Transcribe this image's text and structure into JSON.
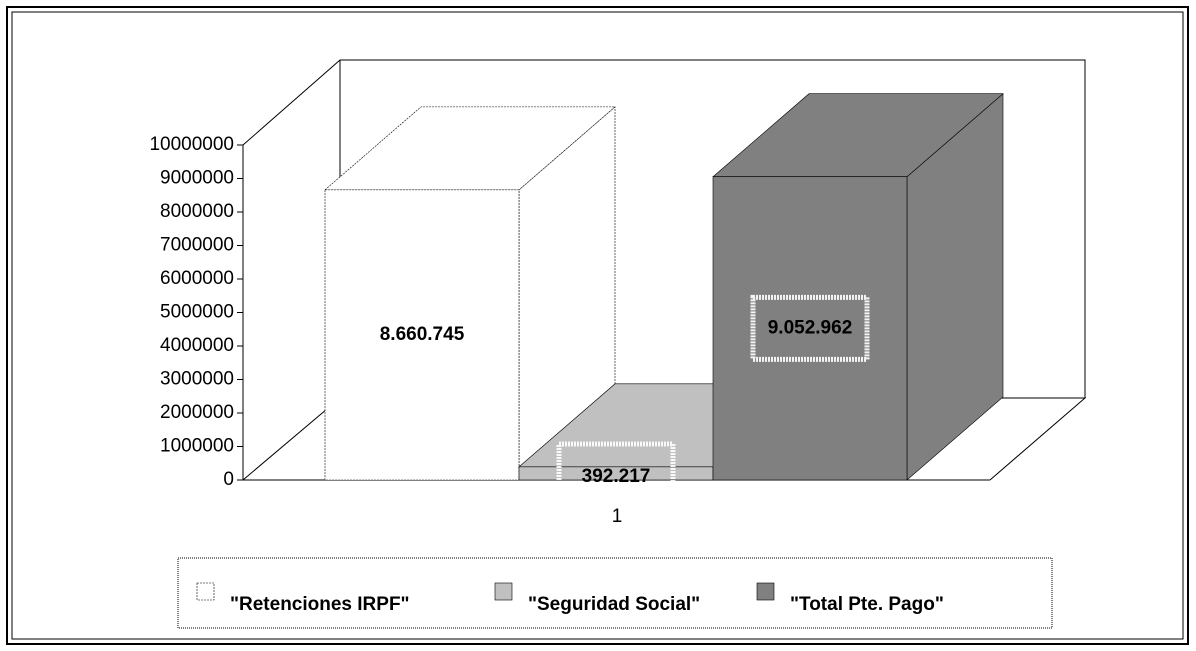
{
  "chart_data": {
    "type": "bar3d",
    "categories": [
      "1"
    ],
    "series": [
      {
        "name": "\"Retenciones IRPF\"",
        "color": "#ffffff",
        "values": [
          8660745
        ],
        "value_labels": [
          "8.660.745"
        ]
      },
      {
        "name": "\"Seguridad Social\"",
        "color": "#c0c0c0",
        "values": [
          392217
        ],
        "value_labels": [
          "392.217"
        ]
      },
      {
        "name": "\"Total Pte. Pago\"",
        "color": "#808080",
        "values": [
          9052962
        ],
        "value_labels": [
          "9.052.962"
        ]
      }
    ],
    "ylim": [
      0,
      10000000
    ],
    "yticks": [
      0,
      1000000,
      2000000,
      3000000,
      4000000,
      5000000,
      6000000,
      7000000,
      8000000,
      9000000,
      10000000
    ],
    "legend": "bottom"
  }
}
